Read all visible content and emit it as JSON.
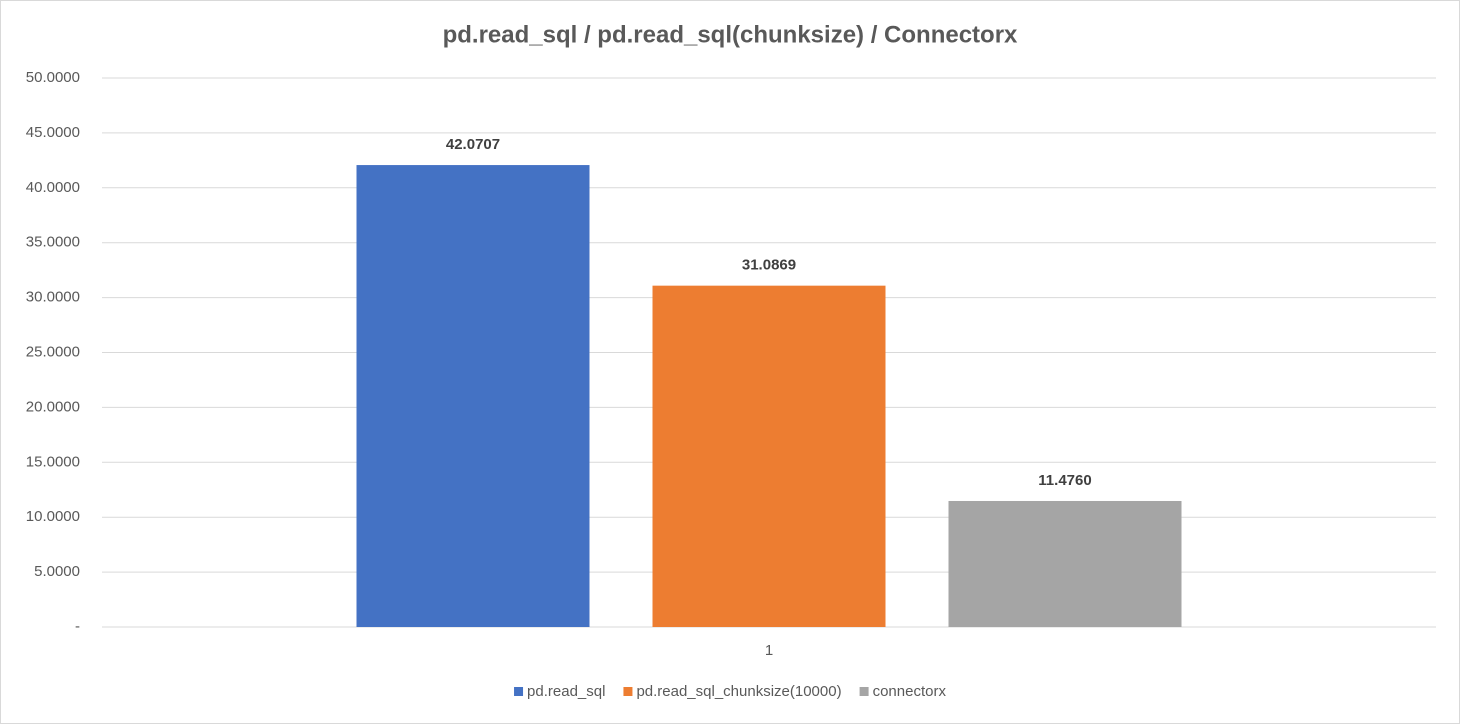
{
  "chart_data": {
    "type": "bar",
    "title": "pd.read_sql / pd.read_sql(chunksize) / Connectorx",
    "categories": [
      "1"
    ],
    "series": [
      {
        "name": "pd.read_sql",
        "color": "#4472c4",
        "values": [
          42.0707
        ],
        "value_labels": [
          "42.0707"
        ]
      },
      {
        "name": "pd.read_sql_chunksize(10000)",
        "color": "#ed7d31",
        "values": [
          31.0869
        ],
        "value_labels": [
          "31.0869"
        ]
      },
      {
        "name": "connectorx",
        "color": "#a5a5a5",
        "values": [
          11.476
        ],
        "value_labels": [
          "11.4760"
        ]
      }
    ],
    "ylim": [
      0,
      50
    ],
    "yticks": [
      {
        "value": 0,
        "label": "-"
      },
      {
        "value": 5,
        "label": "5.0000"
      },
      {
        "value": 10,
        "label": "10.0000"
      },
      {
        "value": 15,
        "label": "15.0000"
      },
      {
        "value": 20,
        "label": "20.0000"
      },
      {
        "value": 25,
        "label": "25.0000"
      },
      {
        "value": 30,
        "label": "30.0000"
      },
      {
        "value": 35,
        "label": "35.0000"
      },
      {
        "value": 40,
        "label": "40.0000"
      },
      {
        "value": 45,
        "label": "45.0000"
      },
      {
        "value": 50,
        "label": "50.0000"
      }
    ],
    "grid": true,
    "legend": "bottom"
  }
}
